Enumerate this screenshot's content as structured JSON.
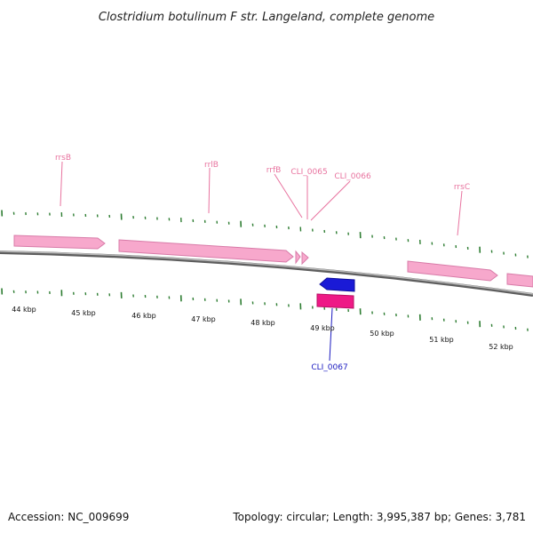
{
  "title": "Clostridium botulinum F str. Langeland, complete genome",
  "footer": {
    "accession": "Accession: NC_009699",
    "summary": "Topology: circular; Length: 3,995,387 bp; Genes: 3,781"
  },
  "colors": {
    "rrna": "#f7a8cc",
    "rrna_edge": "#d87ba8",
    "rrna_label": "#e8739f",
    "cds_forward": "#1a1ad6",
    "cds_highlight": "#ee1a86",
    "cds_label": "#1a1ac0",
    "backbone": "#8a8a8a",
    "ticks": "#2e7d32"
  },
  "tick_labels": [
    "44 kbp",
    "45 kbp",
    "46 kbp",
    "47 kbp",
    "48 kbp",
    "49 kbp",
    "50 kbp",
    "51 kbp",
    "52 kbp"
  ],
  "feature_labels": [
    {
      "text": "rrsB",
      "type": "rrna"
    },
    {
      "text": "rrlB",
      "type": "rrna"
    },
    {
      "text": "rrfB",
      "type": "rrna"
    },
    {
      "text": "CLI_0065",
      "type": "rrna"
    },
    {
      "text": "CLI_0066",
      "type": "rrna"
    },
    {
      "text": "rrsC",
      "type": "rrna"
    },
    {
      "text": "CLI_0067",
      "type": "cds"
    }
  ]
}
